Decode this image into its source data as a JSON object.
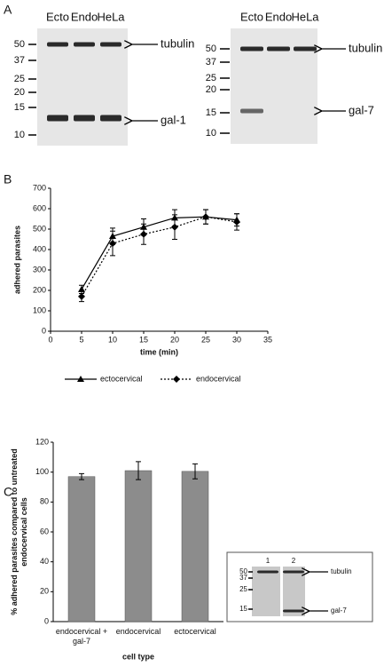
{
  "panel_labels": [
    "A",
    "B",
    "C"
  ],
  "blots": [
    {
      "lanes": [
        "Ecto",
        "Endo",
        "HeLa"
      ],
      "markers": [
        50,
        37,
        25,
        20,
        15,
        10
      ],
      "bands": [
        "tubulin",
        "gal-1"
      ]
    },
    {
      "lanes": [
        "Ecto",
        "Endo",
        "HeLa"
      ],
      "markers": [
        50,
        37,
        25,
        20,
        15,
        10
      ],
      "bands": [
        "tubulin",
        "gal-7"
      ]
    },
    {
      "lanes": [
        "1",
        "2"
      ],
      "markers": [
        50,
        37,
        25,
        15
      ],
      "bands": [
        "tubulin",
        "gal-7"
      ]
    }
  ],
  "chart_data": [
    {
      "type": "line",
      "xlabel": "time (min)",
      "ylabel": "adhered parasites",
      "x": [
        5,
        10,
        15,
        20,
        25,
        30
      ],
      "xlim": [
        0,
        35
      ],
      "xticks": [
        0,
        5,
        10,
        15,
        20,
        25,
        30,
        35
      ],
      "ylim": [
        0,
        700
      ],
      "yticks": [
        0,
        100,
        200,
        300,
        400,
        500,
        600,
        700
      ],
      "legend": "bottom",
      "series": [
        {
          "name": "ectocervical",
          "color": "#000000",
          "marker": "triangle",
          "line": "solid",
          "values": [
            205,
            465,
            510,
            555,
            560,
            545
          ],
          "errors": [
            20,
            40,
            40,
            40,
            35,
            30
          ]
        },
        {
          "name": "endocervical",
          "color": "#000000",
          "marker": "diamond",
          "line": "dotted",
          "values": [
            170,
            430,
            475,
            510,
            560,
            535
          ],
          "errors": [
            25,
            60,
            50,
            60,
            35,
            40
          ]
        }
      ]
    },
    {
      "type": "bar",
      "xlabel": "cell type",
      "ylabel": "% adhered parasites compared to untreated endocervical cells",
      "categories": [
        "endocervical + gal-7",
        "endocervical",
        "ectocervical"
      ],
      "values": [
        97,
        101,
        100.5
      ],
      "errors": [
        2,
        6,
        5
      ],
      "color": "#8c8c8c",
      "ylim": [
        0,
        120
      ],
      "yticks": [
        0,
        20,
        40,
        60,
        80,
        100,
        120
      ]
    }
  ]
}
